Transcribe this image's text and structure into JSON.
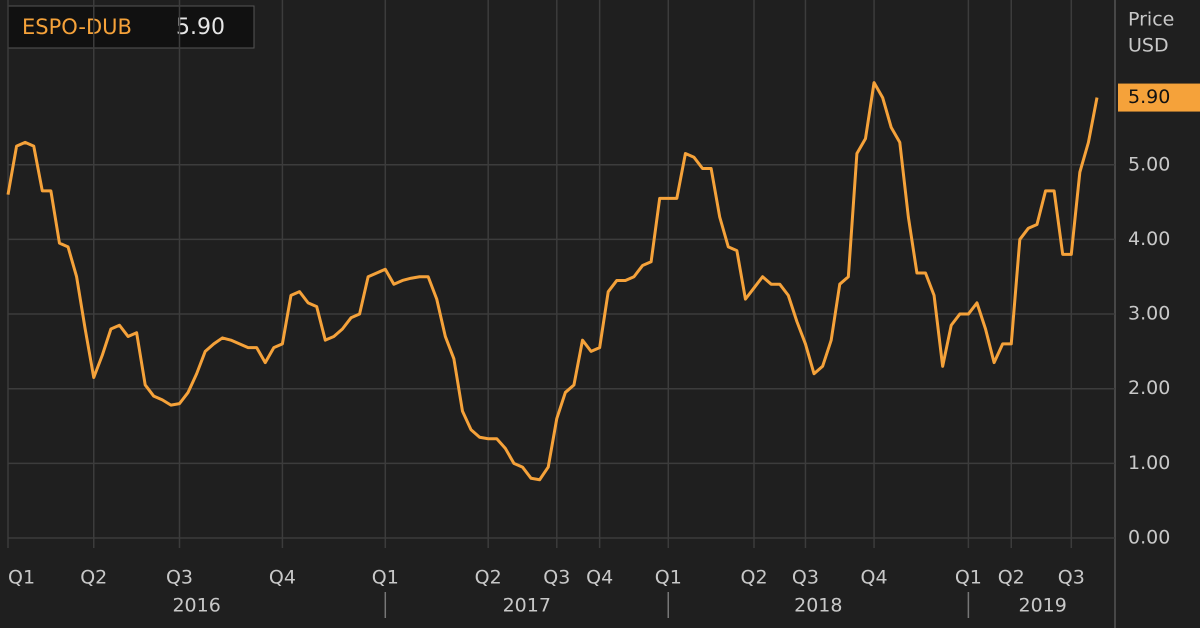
{
  "chart_data": {
    "type": "line",
    "ylabel": [
      "Price",
      "USD"
    ],
    "categories": [
      "Q1",
      null,
      null,
      null,
      null,
      null,
      null,
      null,
      null,
      null,
      "Q2",
      null,
      null,
      null,
      null,
      null,
      null,
      null,
      null,
      null,
      "Q3",
      null,
      null,
      null,
      null,
      null,
      null,
      null,
      null,
      null,
      null,
      null,
      "Q4",
      null,
      null,
      null,
      null,
      null,
      null,
      null,
      null,
      null,
      null,
      null,
      "Q1",
      null,
      null,
      null,
      null,
      null,
      null,
      null,
      null,
      null,
      null,
      null,
      "Q2",
      null,
      null,
      null,
      null,
      null,
      null,
      null,
      "Q3",
      null,
      null,
      null,
      null,
      "Q4",
      null,
      null,
      null,
      null,
      null,
      null,
      null,
      "Q1",
      null,
      null,
      null,
      null,
      null,
      null,
      null,
      null,
      null,
      "Q2",
      null,
      null,
      null,
      null,
      null,
      "Q3",
      null,
      null,
      null,
      null,
      null,
      null,
      null,
      "Q4",
      null,
      null,
      null,
      null,
      null,
      null,
      null,
      null,
      null,
      null,
      "Q1",
      null,
      null,
      null,
      null,
      "Q2",
      null,
      null,
      null,
      null,
      null,
      null,
      "Q3",
      null,
      null,
      null
    ],
    "years": [
      "2016",
      "2017",
      "2018",
      "2019"
    ],
    "series": [
      {
        "name": "ESPO-DUB",
        "color": "#f5a23a",
        "value_label": "5.90",
        "values": [
          4.6,
          5.25,
          5.3,
          5.25,
          4.65,
          4.65,
          3.95,
          3.9,
          3.5,
          2.8,
          2.15,
          2.45,
          2.8,
          2.85,
          2.7,
          2.75,
          2.05,
          1.9,
          1.85,
          1.78,
          1.8,
          1.95,
          2.2,
          2.5,
          2.6,
          2.68,
          2.65,
          2.6,
          2.55,
          2.55,
          2.35,
          2.55,
          2.6,
          3.25,
          3.3,
          3.15,
          3.1,
          2.65,
          2.7,
          2.8,
          2.95,
          3.0,
          3.5,
          3.55,
          3.6,
          3.4,
          3.45,
          3.48,
          3.5,
          3.5,
          3.2,
          2.7,
          2.4,
          1.7,
          1.45,
          1.35,
          1.33,
          1.33,
          1.2,
          1.0,
          0.95,
          0.8,
          0.78,
          0.95,
          1.6,
          1.95,
          2.05,
          2.65,
          2.5,
          2.55,
          3.3,
          3.45,
          3.45,
          3.5,
          3.65,
          3.7,
          4.55,
          4.55,
          4.55,
          5.15,
          5.1,
          4.95,
          4.95,
          4.3,
          3.9,
          3.85,
          3.2,
          3.35,
          3.5,
          3.4,
          3.4,
          3.25,
          2.9,
          2.6,
          2.2,
          2.3,
          2.65,
          3.4,
          3.5,
          5.15,
          5.35,
          6.1,
          5.9,
          5.5,
          5.3,
          4.3,
          3.55,
          3.55,
          3.25,
          2.3,
          2.85,
          3.0,
          3.0,
          3.15,
          2.8,
          2.35,
          2.6,
          2.6,
          4.0,
          4.15,
          4.2,
          4.65,
          4.65,
          3.8,
          3.8,
          4.9,
          5.3,
          5.9
        ]
      }
    ],
    "ylim": [
      0,
      7.14
    ],
    "yticks": [
      {
        "value": 0,
        "label": "0.00"
      },
      {
        "value": 1,
        "label": "1.00"
      },
      {
        "value": 2,
        "label": "2.00"
      },
      {
        "value": 3,
        "label": "3.00"
      },
      {
        "value": 4,
        "label": "4.00"
      },
      {
        "value": 5,
        "label": "5.00"
      }
    ],
    "grid": true
  }
}
